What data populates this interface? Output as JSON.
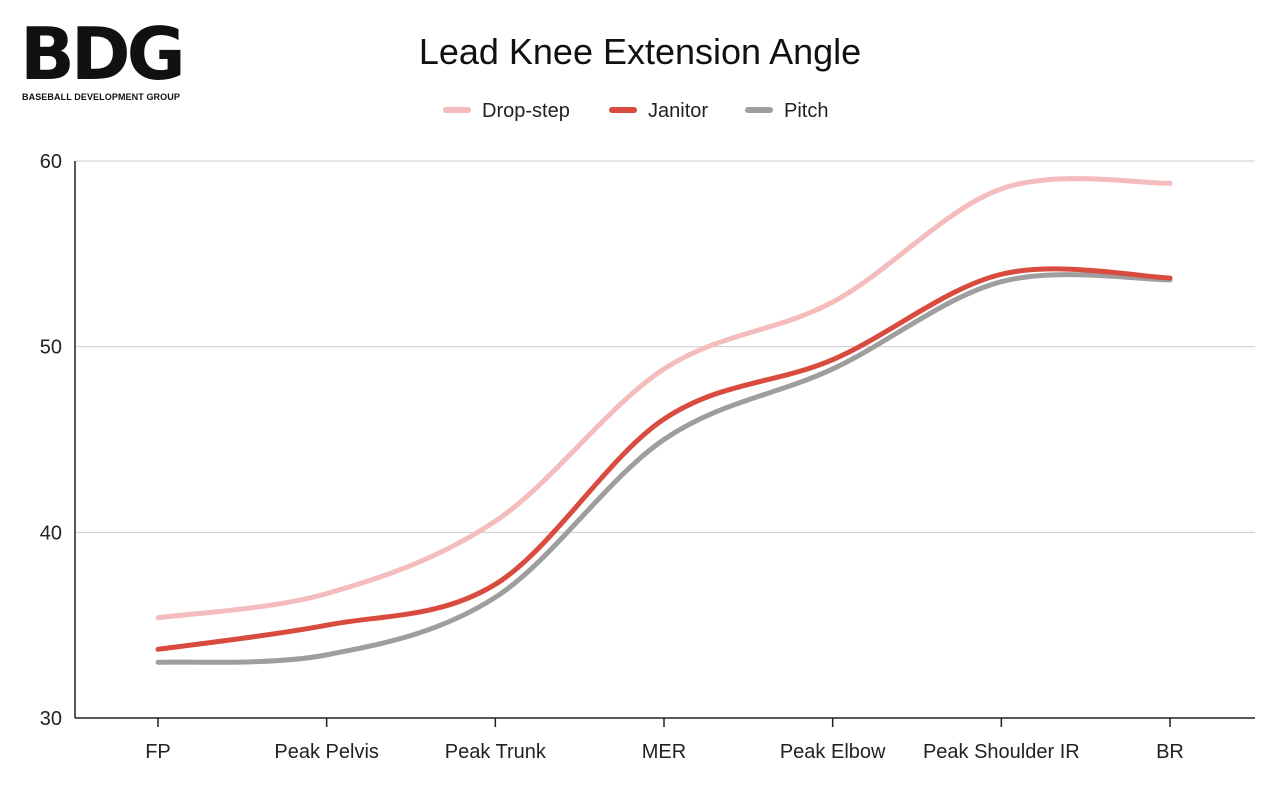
{
  "logo": {
    "letters": "BDG",
    "subtitle": "BASEBALL DEVELOPMENT GROUP"
  },
  "chart_data": {
    "type": "line",
    "title": "Lead Knee Extension Angle",
    "xlabel": "",
    "ylabel": "",
    "categories": [
      "FP",
      "Peak Pelvis",
      "Peak Trunk",
      "MER",
      "Peak Elbow",
      "Peak Shoulder IR",
      "BR"
    ],
    "ylim": [
      30,
      60
    ],
    "yticks": [
      30,
      40,
      50,
      60
    ],
    "grid": true,
    "legend_position": "top",
    "smooth": true,
    "series": [
      {
        "name": "Drop-step",
        "color": "#f4bcbc",
        "values": [
          35.4,
          36.7,
          40.6,
          48.8,
          52.4,
          58.5,
          58.8
        ]
      },
      {
        "name": "Janitor",
        "color": "#d94b3f",
        "values": [
          33.7,
          35.0,
          37.2,
          46.1,
          49.3,
          53.9,
          53.7
        ]
      },
      {
        "name": "Pitch",
        "color": "#9e9e9e",
        "values": [
          33.0,
          33.4,
          36.5,
          45.0,
          48.8,
          53.5,
          53.6
        ]
      }
    ]
  }
}
